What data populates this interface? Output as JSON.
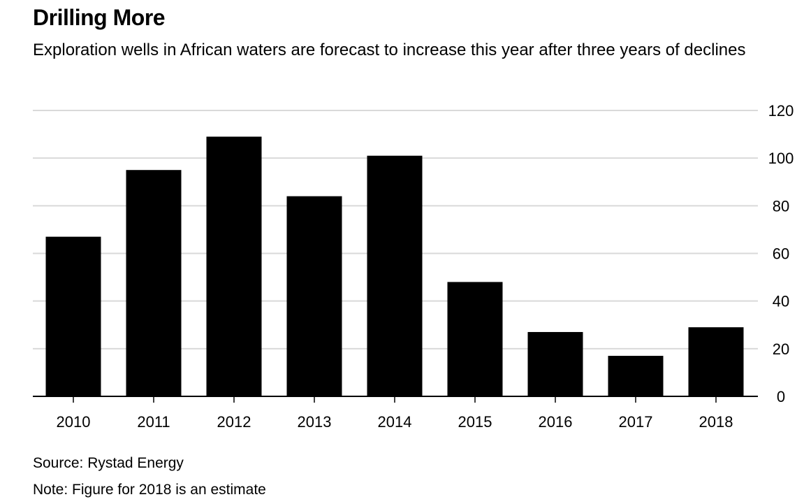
{
  "header": {
    "title": "Drilling More",
    "subtitle": "Exploration wells in African waters are forecast to increase this year after three years of declines"
  },
  "footer": {
    "source": "Source: Rystad Energy",
    "note": "Note: Figure for 2018 is an estimate"
  },
  "chart_data": {
    "type": "bar",
    "title": "Drilling More",
    "subtitle": "Exploration wells in African waters are forecast to increase this year after three years of declines",
    "categories": [
      "2010",
      "2011",
      "2012",
      "2013",
      "2014",
      "2015",
      "2016",
      "2017",
      "2018"
    ],
    "values": [
      67,
      95,
      109,
      84,
      101,
      48,
      27,
      17,
      29
    ],
    "xlabel": "",
    "ylabel": "",
    "ylim": [
      0,
      120
    ],
    "yticks": [
      0,
      20,
      40,
      60,
      80,
      100,
      120
    ],
    "y_axis_side": "right",
    "grid": true,
    "legend": "none",
    "colors": {
      "bar": "#000000",
      "grid": "#d9d9d9",
      "axis": "#000000",
      "text": "#000000"
    }
  }
}
